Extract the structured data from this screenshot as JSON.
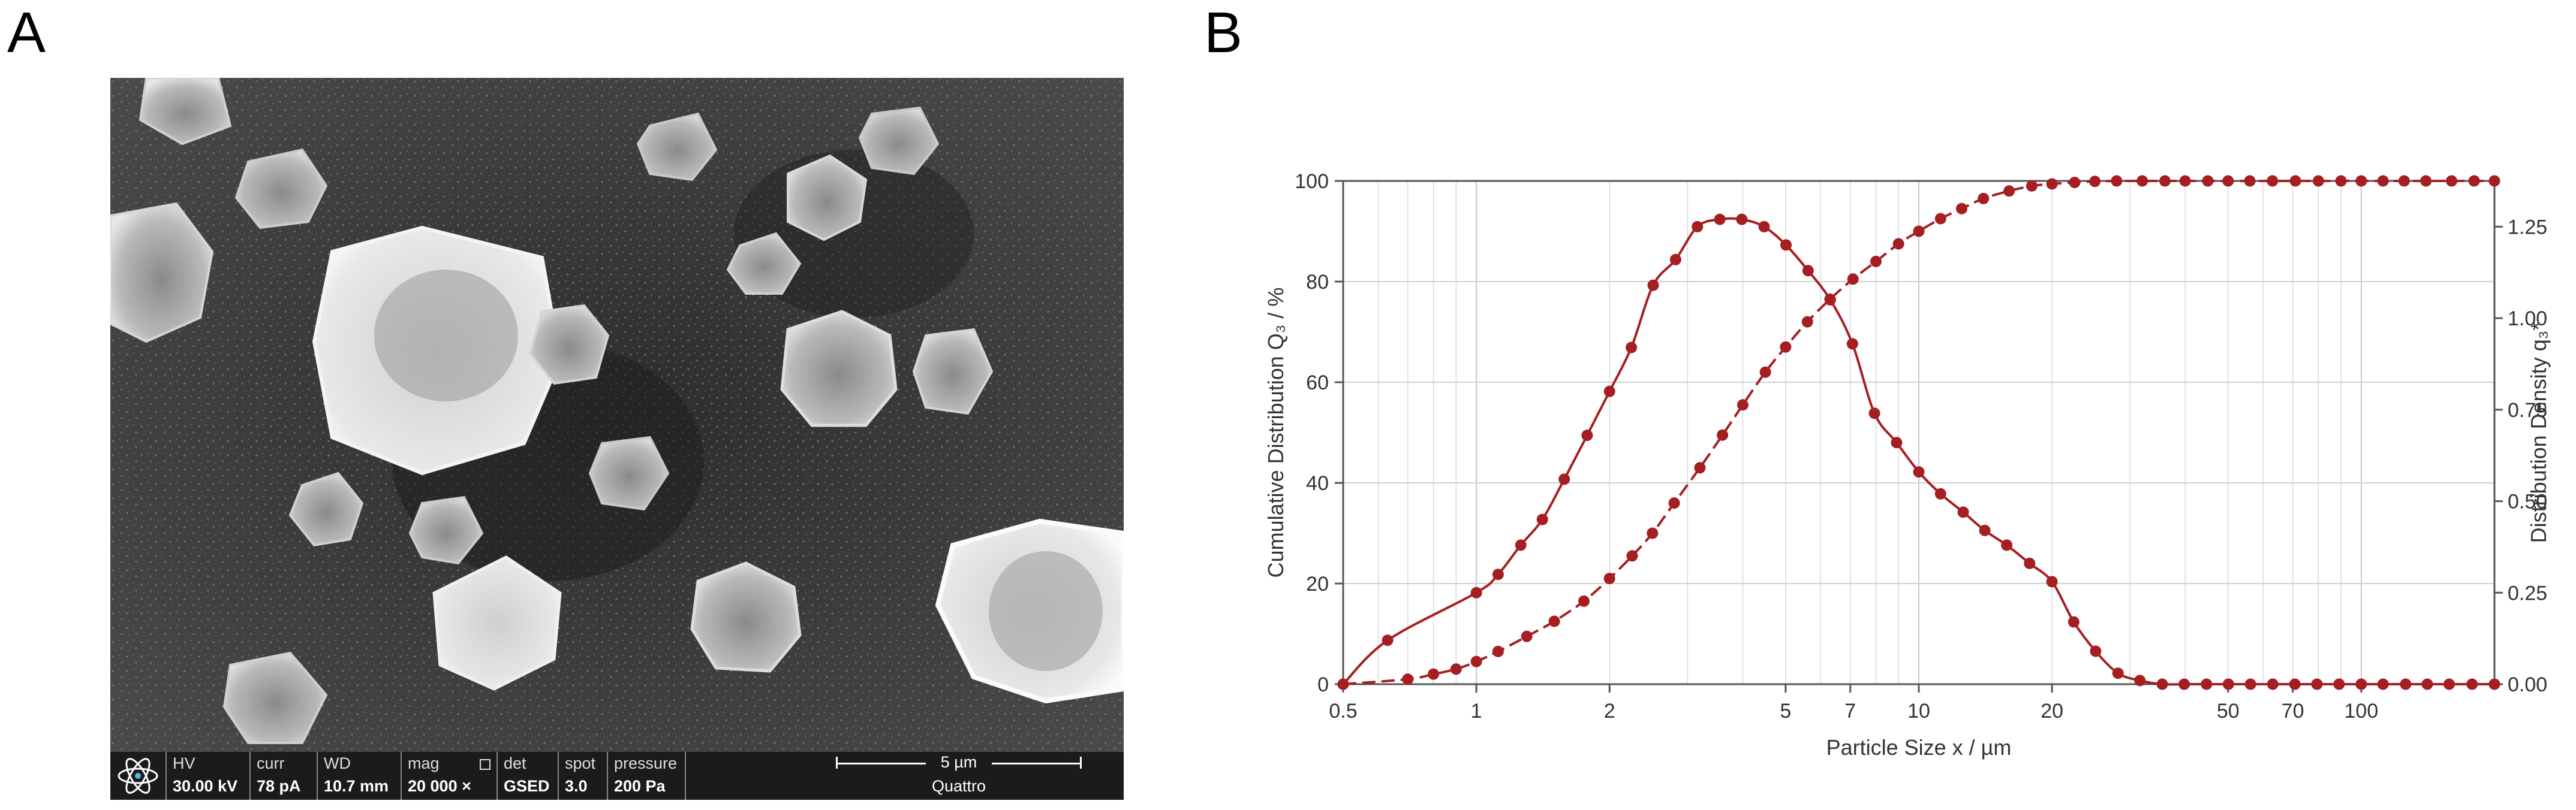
{
  "panels": {
    "a": "A",
    "b": "B"
  },
  "sem_info": {
    "fields": [
      {
        "key": "HV",
        "value": "30.00 kV"
      },
      {
        "key": "curr",
        "value": "78 pA"
      },
      {
        "key": "WD",
        "value": "10.7 mm"
      },
      {
        "key": "mag",
        "value": "20 000 ×"
      },
      {
        "key": "det",
        "value": "GSED"
      },
      {
        "key": "spot",
        "value": "3.0"
      },
      {
        "key": "pressure",
        "value": "200 Pa"
      }
    ],
    "scale_bar": "5 µm",
    "instrument": "Quattro"
  },
  "chart_data": {
    "type": "line",
    "xlabel": "Particle Size x / µm",
    "ylabel_left": "Cumulative Distribution Q₃ / %",
    "ylabel_right": "Distribution Density q₃*",
    "x_scale": "log",
    "xlim": [
      0.5,
      200
    ],
    "ylim_left": [
      0,
      100
    ],
    "ylim_right": [
      0,
      1.375
    ],
    "x_ticks": [
      "0.5",
      "1",
      "2",
      "5",
      "7",
      "10",
      "20",
      "50",
      "70",
      "100"
    ],
    "x_tick_values": [
      0.5,
      1,
      2,
      5,
      7,
      10,
      20,
      50,
      70,
      100
    ],
    "y_ticks_left": [
      "0",
      "20",
      "40",
      "60",
      "80",
      "100"
    ],
    "y_ticks_right": [
      "0.00",
      "0.25",
      "0.50",
      "0.75",
      "1.00",
      "1.25"
    ],
    "grid": true,
    "color": "#a51e22",
    "series": [
      {
        "axis": "left",
        "style": "dashed",
        "x": [
          0.5,
          0.7,
          0.8,
          0.9,
          1.0,
          1.12,
          1.3,
          1.5,
          1.75,
          2.0,
          2.25,
          2.5,
          2.8,
          3.2,
          3.6,
          4.0,
          4.5,
          5.0,
          5.6,
          6.3,
          7.1,
          8.0,
          9.0,
          10.0,
          11.2,
          12.5,
          14.0,
          16.0,
          18.0,
          20.0,
          22.5,
          25,
          28,
          32,
          36,
          40,
          45,
          50,
          56,
          63,
          71,
          80,
          90,
          100,
          112,
          125,
          140,
          160,
          180,
          200
        ],
        "y": [
          0,
          1.0,
          2.0,
          3.0,
          4.5,
          6.5,
          9.5,
          12.5,
          16.5,
          21.0,
          25.5,
          30.0,
          36.0,
          43.0,
          49.5,
          55.5,
          62.0,
          67.0,
          72.0,
          76.5,
          80.5,
          84.0,
          87.5,
          90.0,
          92.5,
          94.5,
          96.5,
          98.0,
          99.0,
          99.4,
          99.7,
          99.9,
          100,
          100,
          100,
          100,
          100,
          100,
          100,
          100,
          100,
          100,
          100,
          100,
          100,
          100,
          100,
          100,
          100,
          100
        ]
      },
      {
        "axis": "right",
        "style": "solid",
        "x": [
          0.5,
          0.63,
          1.0,
          1.12,
          1.26,
          1.41,
          1.58,
          1.78,
          2.0,
          2.24,
          2.51,
          2.82,
          3.16,
          3.55,
          3.98,
          4.47,
          5.01,
          5.62,
          6.31,
          7.08,
          7.94,
          8.91,
          10.0,
          11.2,
          12.6,
          14.1,
          15.8,
          17.8,
          20.0,
          22.4,
          25.1,
          28.2,
          31.6,
          35.5,
          39.8,
          44.7,
          50.1,
          56.2,
          63.1,
          70.8,
          79.4,
          89.1,
          100,
          112,
          126,
          141,
          158,
          178,
          200
        ],
        "y": [
          0.0,
          0.12,
          0.25,
          0.3,
          0.38,
          0.45,
          0.56,
          0.68,
          0.8,
          0.92,
          1.09,
          1.16,
          1.25,
          1.27,
          1.27,
          1.25,
          1.2,
          1.13,
          1.05,
          0.93,
          0.74,
          0.66,
          0.58,
          0.52,
          0.47,
          0.42,
          0.38,
          0.33,
          0.28,
          0.17,
          0.09,
          0.03,
          0.01,
          0.0,
          0.0,
          0.0,
          0.0,
          0.0,
          0.0,
          0.0,
          0.0,
          0.0,
          0.0,
          0.0,
          0.0,
          0.0,
          0.0,
          0.0,
          0.0
        ]
      }
    ]
  }
}
